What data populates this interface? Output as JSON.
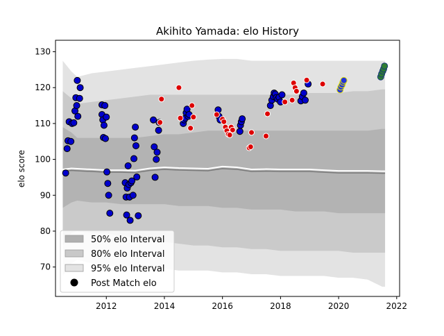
{
  "chart_data": {
    "type": "scatter",
    "title": "Akihito Yamada: elo History",
    "xlabel": "",
    "ylabel": "elo score",
    "xlim": [
      2010.25,
      2022.1
    ],
    "ylim": [
      61.8,
      133.2
    ],
    "xticks": [
      2012,
      2014,
      2016,
      2018,
      2020,
      2022
    ],
    "yticks": [
      70,
      80,
      90,
      100,
      110,
      120,
      130
    ],
    "grid": false,
    "legend": {
      "placement": "lower-left",
      "entries": [
        {
          "label": "50% elo Interval",
          "kind": "patch",
          "color": "#b0b0b0"
        },
        {
          "label": "80% elo Interval",
          "kind": "patch",
          "color": "#c8c8c8"
        },
        {
          "label": "95% elo Interval",
          "kind": "patch",
          "color": "#e3e3e3"
        },
        {
          "label": "Post Match elo",
          "kind": "marker",
          "color": "#000000"
        }
      ]
    },
    "band_x": [
      2010.5,
      2010.8,
      2011.0,
      2011.5,
      2012.0,
      2012.5,
      2013.0,
      2013.5,
      2014.0,
      2014.5,
      2015.0,
      2015.5,
      2016.0,
      2016.5,
      2017.0,
      2017.5,
      2018.0,
      2018.5,
      2019.0,
      2019.5,
      2020.0,
      2020.5,
      2021.0,
      2021.5,
      2021.6
    ],
    "band_95_upper": [
      127.5,
      124.5,
      123.0,
      124.0,
      124.5,
      125.0,
      125.5,
      126.0,
      126.5,
      127.0,
      127.5,
      127.8,
      128.0,
      128.0,
      127.5,
      127.5,
      127.5,
      127.5,
      127.5,
      127.5,
      127.5,
      127.5,
      127.5,
      127.5,
      127.5
    ],
    "band_80_upper": [
      119.0,
      117.0,
      115.5,
      116.0,
      116.5,
      117.0,
      117.5,
      118.0,
      118.0,
      118.0,
      118.0,
      118.0,
      118.0,
      118.0,
      118.0,
      118.0,
      118.0,
      118.0,
      118.5,
      118.5,
      118.5,
      119.0,
      119.0,
      119.5,
      119.5
    ],
    "band_50_upper": [
      109.0,
      107.5,
      106.0,
      106.0,
      106.0,
      106.0,
      106.0,
      106.5,
      107.0,
      107.0,
      107.5,
      108.0,
      108.0,
      108.0,
      108.0,
      108.0,
      108.0,
      108.0,
      108.0,
      108.0,
      108.0,
      108.0,
      108.0,
      108.5,
      108.5
    ],
    "band_median": [
      97.2,
      97.5,
      97.4,
      97.2,
      97.0,
      97.0,
      96.9,
      97.5,
      97.8,
      97.6,
      97.5,
      97.4,
      98.0,
      97.8,
      97.2,
      97.3,
      97.2,
      97.2,
      97.2,
      97.0,
      96.8,
      96.8,
      96.8,
      96.7,
      96.7
    ],
    "band_50_lower": [
      86.5,
      88.0,
      88.5,
      88.0,
      88.0,
      87.5,
      87.5,
      87.5,
      87.5,
      87.0,
      87.0,
      87.0,
      86.5,
      86.5,
      86.0,
      86.0,
      86.0,
      85.5,
      85.5,
      85.5,
      85.0,
      85.0,
      85.0,
      85.0,
      85.0
    ],
    "band_80_lower": [
      76.0,
      79.5,
      80.0,
      79.5,
      79.5,
      78.5,
      78.0,
      77.5,
      77.0,
      76.5,
      76.0,
      76.0,
      75.5,
      75.5,
      75.0,
      75.0,
      74.5,
      74.5,
      74.5,
      74.5,
      74.5,
      74.0,
      74.0,
      74.0,
      74.0
    ],
    "band_95_lower": [
      67.5,
      71.0,
      72.0,
      71.0,
      70.5,
      70.0,
      69.5,
      69.5,
      69.5,
      69.0,
      69.0,
      69.0,
      68.5,
      68.5,
      68.0,
      68.0,
      67.5,
      67.5,
      67.5,
      67.5,
      67.0,
      67.0,
      66.5,
      64.5,
      64.5
    ],
    "series": [
      {
        "color": "#0000cd",
        "points": [
          [
            2010.6,
            96.2
          ],
          [
            2010.65,
            103
          ],
          [
            2010.68,
            105.2
          ],
          [
            2010.72,
            110.5
          ],
          [
            2010.78,
            105
          ],
          [
            2010.82,
            110
          ],
          [
            2010.88,
            110.2
          ],
          [
            2010.92,
            113.5
          ],
          [
            2010.95,
            117.2
          ],
          [
            2010.98,
            115
          ],
          [
            2011.02,
            112
          ],
          [
            2011.0,
            122
          ],
          [
            2011.08,
            117
          ],
          [
            2011.1,
            120
          ],
          [
            2011.85,
            115.2
          ],
          [
            2011.85,
            112.5
          ],
          [
            2011.88,
            111
          ],
          [
            2011.9,
            106.1
          ],
          [
            2011.92,
            109.5
          ],
          [
            2011.95,
            115
          ],
          [
            2011.97,
            105.8
          ],
          [
            2012.0,
            111.8
          ],
          [
            2012.02,
            96.5
          ],
          [
            2012.05,
            93.3
          ],
          [
            2012.08,
            90
          ],
          [
            2012.12,
            85
          ],
          [
            2012.65,
            93.5
          ],
          [
            2012.68,
            89.5
          ],
          [
            2012.7,
            84.5
          ],
          [
            2012.72,
            92
          ],
          [
            2012.75,
            98.2
          ],
          [
            2012.78,
            93
          ],
          [
            2012.8,
            89.5
          ],
          [
            2012.82,
            83
          ],
          [
            2012.85,
            93.5
          ],
          [
            2012.88,
            94
          ],
          [
            2012.92,
            90
          ],
          [
            2012.95,
            100.2
          ],
          [
            2012.97,
            106
          ],
          [
            2013.0,
            109
          ],
          [
            2013.02,
            103.8
          ],
          [
            2013.05,
            95.1
          ],
          [
            2013.1,
            84.3
          ],
          [
            2013.62,
            111
          ],
          [
            2013.65,
            103.5
          ],
          [
            2013.68,
            95
          ],
          [
            2013.72,
            100
          ],
          [
            2013.75,
            102
          ],
          [
            2013.8,
            108.1
          ],
          [
            2013.82,
            110.3
          ],
          [
            2014.65,
            110
          ],
          [
            2014.68,
            111
          ],
          [
            2014.72,
            111.5
          ],
          [
            2014.75,
            113
          ],
          [
            2014.78,
            114
          ],
          [
            2014.82,
            112
          ],
          [
            2014.85,
            112.5
          ],
          [
            2015.85,
            113.8
          ],
          [
            2015.88,
            112
          ],
          [
            2015.92,
            111
          ],
          [
            2016.6,
            107.8
          ],
          [
            2016.62,
            109.5
          ],
          [
            2016.65,
            110.5
          ],
          [
            2016.68,
            111.3
          ],
          [
            2017.65,
            115
          ],
          [
            2017.7,
            116.5
          ],
          [
            2017.75,
            117.5
          ],
          [
            2017.78,
            118.5
          ],
          [
            2017.82,
            118.2
          ],
          [
            2017.85,
            117.2
          ],
          [
            2017.9,
            116.8
          ],
          [
            2017.95,
            117.3
          ],
          [
            2018.0,
            116
          ],
          [
            2018.05,
            118
          ],
          [
            2018.7,
            116.3
          ],
          [
            2018.75,
            117.5
          ],
          [
            2018.8,
            118.5
          ],
          [
            2018.85,
            116.5
          ],
          [
            2018.95,
            121
          ]
        ]
      },
      {
        "color": "#dd0000",
        "points": [
          [
            2013.85,
            110.3
          ],
          [
            2013.9,
            116.8
          ],
          [
            2014.5,
            120
          ],
          [
            2014.55,
            111.5
          ],
          [
            2014.9,
            108.7
          ],
          [
            2014.95,
            115
          ],
          [
            2015.0,
            111.8
          ],
          [
            2015.8,
            112.5
          ],
          [
            2016.0,
            111.2
          ],
          [
            2016.05,
            110.5
          ],
          [
            2016.1,
            109
          ],
          [
            2016.15,
            108
          ],
          [
            2016.2,
            107
          ],
          [
            2016.25,
            106.8
          ],
          [
            2016.3,
            109
          ],
          [
            2016.35,
            108.2
          ],
          [
            2016.92,
            103.2
          ],
          [
            2016.97,
            103.5
          ],
          [
            2017.0,
            107.5
          ],
          [
            2017.5,
            106.5
          ],
          [
            2017.55,
            112.7
          ],
          [
            2018.15,
            116
          ],
          [
            2018.4,
            116.5
          ],
          [
            2018.45,
            121.3
          ],
          [
            2018.5,
            120
          ],
          [
            2018.55,
            119
          ],
          [
            2018.9,
            122.1
          ],
          [
            2019.45,
            121
          ]
        ]
      },
      {
        "color": "#2233dd",
        "points": [
          [
            2020.05,
            119.4
          ],
          [
            2020.08,
            120.2
          ],
          [
            2020.12,
            120.8
          ],
          [
            2020.15,
            121.5
          ],
          [
            2020.18,
            122
          ]
        ]
      },
      {
        "color": "#2e7d32",
        "points": [
          [
            2021.45,
            123
          ],
          [
            2021.48,
            123.8
          ],
          [
            2021.52,
            124.6
          ],
          [
            2021.55,
            125.2
          ],
          [
            2021.58,
            126
          ]
        ]
      }
    ]
  }
}
